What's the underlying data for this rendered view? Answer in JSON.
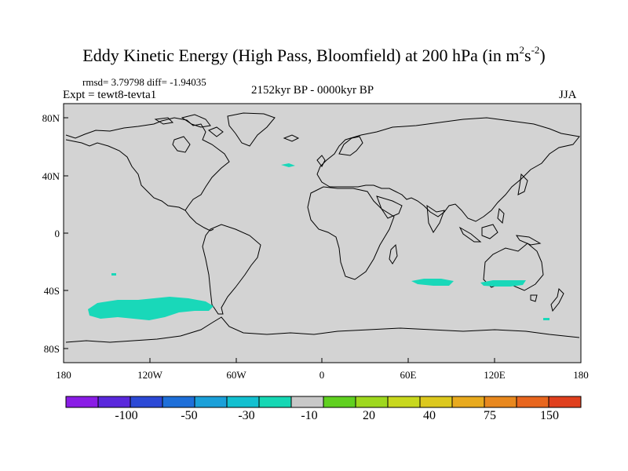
{
  "title": {
    "prefix": "Eddy Kinetic Energy (High Pass, Bloomfield) at 200 hPa (in m",
    "exp1": "2",
    "mid": "s",
    "exp2": "-2",
    "suffix": ")"
  },
  "stats": "rmsd= 3.79798 diff= -1.94035",
  "expt": "Expt = tewt8-tevta1",
  "period": "2152kyr BP - 0000kyr BP",
  "season": "JJA",
  "lat_labels": [
    "80N",
    "40N",
    "0",
    "40S",
    "80S"
  ],
  "lon_labels": [
    "180",
    "120W",
    "60W",
    "0",
    "60E",
    "120E",
    "180"
  ],
  "colorbar": {
    "colors": [
      "#8a1de6",
      "#5a28dc",
      "#2c49d6",
      "#1e6fd9",
      "#1ba0d9",
      "#13c0d0",
      "#16d7b4",
      "#c8c8c8",
      "#60d020",
      "#9ed81e",
      "#c8d81e",
      "#dcc81e",
      "#e8aa1e",
      "#e8881e",
      "#e8661e",
      "#e0401e"
    ],
    "labels": [
      "-100",
      "-50",
      "-30",
      "-10",
      "20",
      "40",
      "75",
      "150"
    ]
  },
  "colors": {
    "ocean_land_background": "#d3d3d3",
    "negative_anomaly_fill": "#19d8b9",
    "coastline": "#000000"
  }
}
